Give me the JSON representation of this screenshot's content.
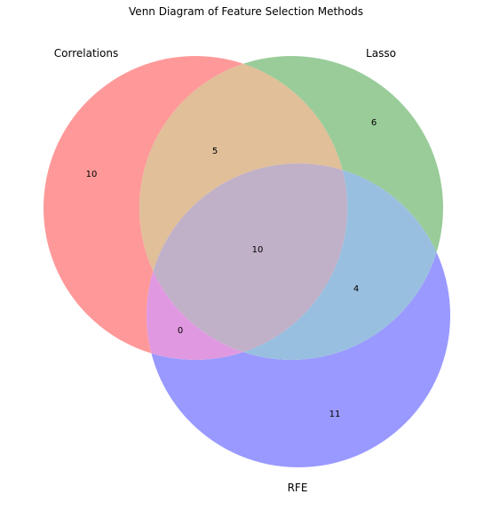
{
  "title": "Venn Diagram of Feature Selection Methods",
  "chart_data": {
    "type": "venn3",
    "title": "Venn Diagram of Feature Selection Methods",
    "sets": [
      {
        "name": "Correlations",
        "color": "#ff7f7f"
      },
      {
        "name": "Lasso",
        "color": "#7fbf7f"
      },
      {
        "name": "RFE",
        "color": "#7f7fff"
      }
    ],
    "regions": {
      "correlations_only": 10,
      "lasso_only": 6,
      "rfe_only": 11,
      "correlations_lasso_only": 5,
      "correlations_rfe_only": 0,
      "lasso_rfe_only": 4,
      "all_three": 10
    },
    "labels": {
      "correlations_only": "10",
      "lasso_only": "6",
      "rfe_only": "11",
      "correlations_lasso_only": "5",
      "correlations_rfe_only": "0",
      "lasso_rfe_only": "4",
      "all_three": "10"
    },
    "fill_alpha": 0.8
  }
}
